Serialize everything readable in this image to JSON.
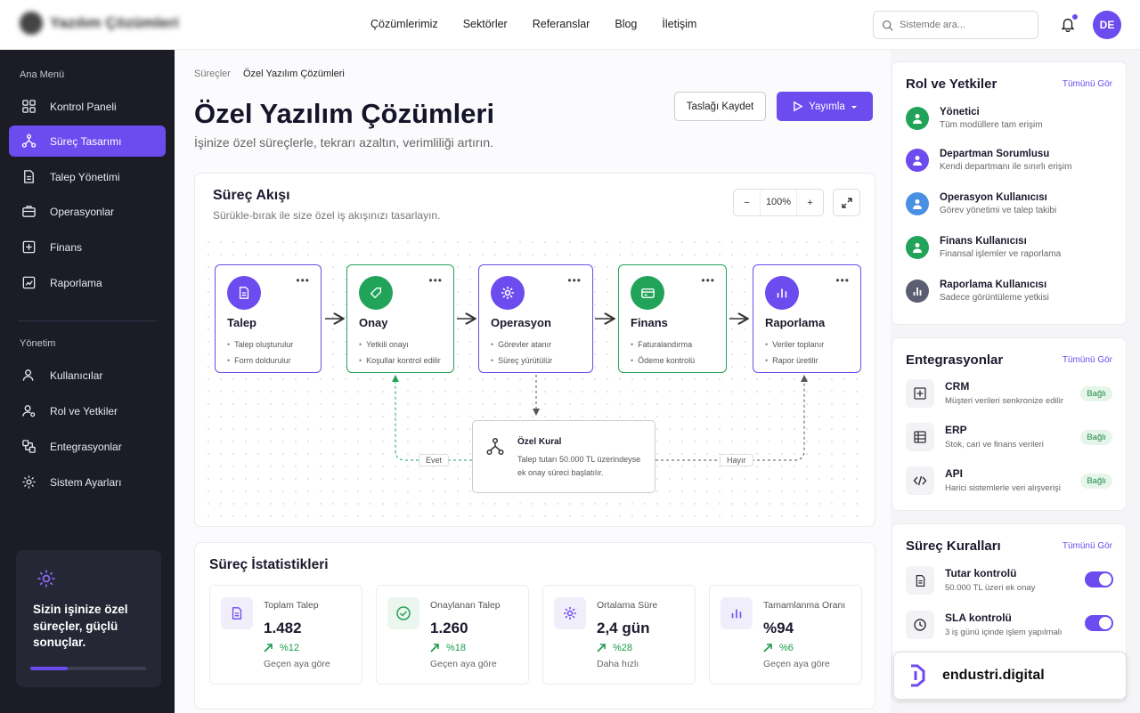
{
  "header": {
    "nav": [
      "Çözümlerimiz",
      "Sektörler",
      "Referanslar",
      "Blog",
      "İletişim"
    ],
    "search_placeholder": "Sistemde ara...",
    "avatar_initials": "DE"
  },
  "sidebar": {
    "section_main": "Ana Menü",
    "main_items": [
      {
        "label": "Kontrol Paneli",
        "icon": "grid-icon",
        "active": false
      },
      {
        "label": "Süreç Tasarımı",
        "icon": "process-icon",
        "active": true
      },
      {
        "label": "Talep Yönetimi",
        "icon": "document-icon",
        "active": false
      },
      {
        "label": "Operasyonlar",
        "icon": "briefcase-icon",
        "active": false
      },
      {
        "label": "Finans",
        "icon": "calculator-icon",
        "active": false
      },
      {
        "label": "Raporlama",
        "icon": "chart-icon",
        "active": false
      }
    ],
    "section_admin": "Yönetim",
    "admin_items": [
      {
        "label": "Kullanıcılar",
        "icon": "users-icon"
      },
      {
        "label": "Rol ve Yetkiler",
        "icon": "user-role-icon"
      },
      {
        "label": "Entegrasyonlar",
        "icon": "integration-icon"
      },
      {
        "label": "Sistem Ayarları",
        "icon": "gear-icon"
      }
    ],
    "promo_text": "Sizin işinize özel süreçler, güçlü sonuçlar.",
    "promo_progress": 0.32
  },
  "page": {
    "breadcrumb": [
      "Süreçler",
      "Özel Yazılım Çözümleri"
    ],
    "title": "Özel Yazılım Çözümleri",
    "subtitle": "İşinize özel süreçlerle, tekrarı azaltın, verimliliği artırın.",
    "draft_button": "Taslağı Kaydet",
    "publish_button": "Yayımla"
  },
  "flow": {
    "title": "Süreç Akışı",
    "subtitle": "Sürükle-bırak ile size özel iş akışınızı tasarlayın.",
    "zoom": "100%",
    "nodes": [
      {
        "title": "Talep",
        "items": [
          "Talep oluşturulur",
          "Form doldurulur"
        ],
        "color": "#6c4bef"
      },
      {
        "title": "Onay",
        "items": [
          "Yetkili onayı",
          "Koşullar kontrol edilir"
        ],
        "color": "#22a35a"
      },
      {
        "title": "Operasyon",
        "items": [
          "Görevler atanır",
          "Süreç yürütülür"
        ],
        "color": "#6c4bef"
      },
      {
        "title": "Finans",
        "items": [
          "Faturalandırma",
          "Ödeme kontrolü"
        ],
        "color": "#22a35a"
      },
      {
        "title": "Raporlama",
        "items": [
          "Veriler toplanır",
          "Rapor üretilir"
        ],
        "color": "#6c4bef"
      }
    ],
    "rule_title": "Özel Kural",
    "rule_desc": "Talep tutarı 50.000 TL üzerindeyse ek onay süreci başlatılır.",
    "yes_label": "Evet",
    "no_label": "Hayır"
  },
  "stats": {
    "title": "Süreç İstatistikleri",
    "items": [
      {
        "label": "Toplam Talep",
        "value": "1.482",
        "delta": "%12",
        "note": "Geçen aya göre",
        "icon": "document-icon"
      },
      {
        "label": "Onaylanan Talep",
        "value": "1.260",
        "delta": "%18",
        "note": "Geçen aya göre",
        "icon": "check-circle-icon"
      },
      {
        "label": "Ortalama Süre",
        "value": "2,4 gün",
        "delta": "%28",
        "note": "Daha hızlı",
        "icon": "gear-icon"
      },
      {
        "label": "Tamamlanma Oranı",
        "value": "%94",
        "delta": "%6",
        "note": "Geçen aya göre",
        "icon": "bar-chart-icon"
      }
    ]
  },
  "roles": {
    "title": "Rol ve Yetkiler",
    "link": "Tümünü Gör",
    "items": [
      {
        "name": "Yönetici",
        "desc": "Tüm modüllere tam erişim",
        "color": "#22a35a"
      },
      {
        "name": "Departman Sorumlusu",
        "desc": "Kendi departmanı ile sınırlı erişim",
        "color": "#6c4bef"
      },
      {
        "name": "Operasyon Kullanıcısı",
        "desc": "Görev yönetimi ve talep takibi",
        "color": "#4a90e2"
      },
      {
        "name": "Finans Kullanıcısı",
        "desc": "Finansal işlemler ve raporlama",
        "color": "#22a35a"
      },
      {
        "name": "Raporlama Kullanıcısı",
        "desc": "Sadece görüntüleme yetkisi",
        "color": "#5b5e70"
      }
    ]
  },
  "integrations": {
    "title": "Entegrasyonlar",
    "link": "Tümünü Gör",
    "items": [
      {
        "name": "CRM",
        "desc": "Müşteri verileri senkronize edilir",
        "status": "Bağlı"
      },
      {
        "name": "ERP",
        "desc": "Stok, cari ve finans verileri",
        "status": "Bağlı"
      },
      {
        "name": "API",
        "desc": "Harici sistemlerle veri alışverişi",
        "status": "Bağlı"
      }
    ]
  },
  "rules": {
    "title": "Süreç Kuralları",
    "link": "Tümünü Gör",
    "items": [
      {
        "name": "Tutar kontrolü",
        "desc": "50.000 TL üzeri ek onay",
        "enabled": true
      },
      {
        "name": "SLA kontrolü",
        "desc": "3 iş günü içinde işlem yapılmalı",
        "enabled": true
      }
    ]
  },
  "brand": {
    "text": "endustri.digital"
  },
  "colors": {
    "accent": "#6c4bef",
    "success": "#22a35a",
    "sidebar": "#1b1c26"
  }
}
